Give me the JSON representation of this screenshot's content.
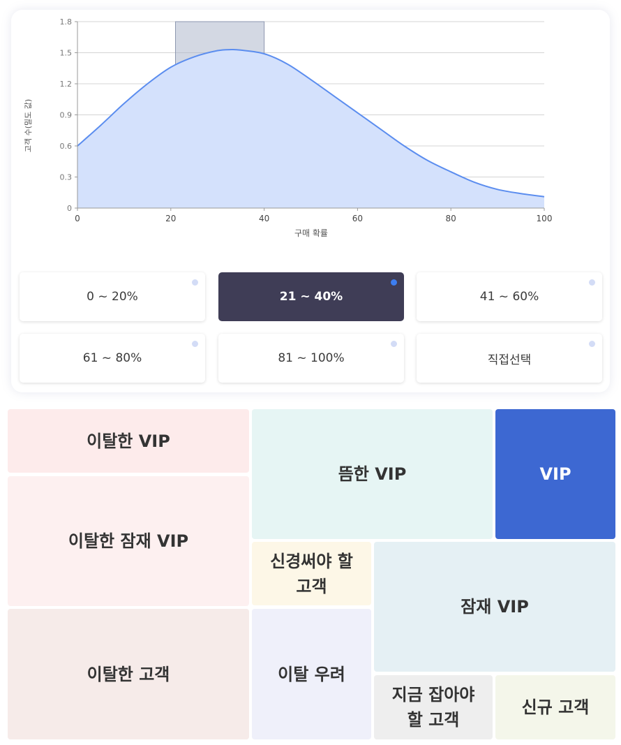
{
  "chart_data": {
    "type": "area",
    "xlabel": "구매 확률",
    "ylabel": "고객 수(밀도 값)",
    "xlim": [
      0,
      100
    ],
    "ylim": [
      0,
      1.8
    ],
    "x_ticks": [
      "0",
      "20",
      "40",
      "60",
      "80",
      "100"
    ],
    "y_ticks": [
      "0",
      "0.3",
      "0.6",
      "0.9",
      "1.2",
      "1.5",
      "1.8"
    ],
    "grid": true,
    "highlight_range": [
      21,
      40
    ],
    "series": [
      {
        "x": [
          0,
          5,
          10,
          15,
          20,
          25,
          30,
          33,
          35,
          40,
          45,
          50,
          55,
          60,
          65,
          70,
          75,
          80,
          85,
          90,
          95,
          100
        ],
        "y": [
          0.6,
          0.8,
          1.01,
          1.2,
          1.36,
          1.46,
          1.52,
          1.53,
          1.525,
          1.49,
          1.39,
          1.24,
          1.08,
          0.92,
          0.76,
          0.6,
          0.46,
          0.35,
          0.25,
          0.18,
          0.14,
          0.11
        ]
      }
    ],
    "colors": {
      "line": "#5b8def",
      "fill": "#d4e1fc",
      "highlight": "#a7b1c8"
    }
  },
  "range_selector": {
    "selected_index": 1,
    "options": [
      "0 ~ 20%",
      "21 ~ 40%",
      "41 ~ 60%",
      "61 ~ 80%",
      "81 ~ 100%",
      "직접선택"
    ],
    "colors": {
      "selected_bg": "#3f3d56",
      "selected_dot": "#3d7ef0",
      "dot": "#d3dcf6"
    }
  },
  "segments": [
    {
      "label": "이탈한 VIP",
      "color": "#fdebeb"
    },
    {
      "label": "이탈한 잠재 VIP",
      "color": "#fdf0f0"
    },
    {
      "label": "이탈한 고객",
      "color": "#f6ebe9"
    },
    {
      "label": "뜸한 VIP",
      "color": "#e6f5f4"
    },
    {
      "label": "VIP",
      "color": "#3d68d2",
      "text_color": "#ffffff"
    },
    {
      "label": "신경써야 할 고객",
      "lines": [
        "신경써야 할",
        "고객"
      ],
      "color": "#fdf7e7"
    },
    {
      "label": "잠재 VIP",
      "color": "#e5f0f4"
    },
    {
      "label": "이탈 우려",
      "color": "#eff0fa"
    },
    {
      "label": "지금 잡아야 할 고객",
      "lines": [
        "지금 잡아야",
        "할 고객"
      ],
      "color": "#eeeeee"
    },
    {
      "label": "신규 고객",
      "color": "#f4f6ea"
    }
  ]
}
